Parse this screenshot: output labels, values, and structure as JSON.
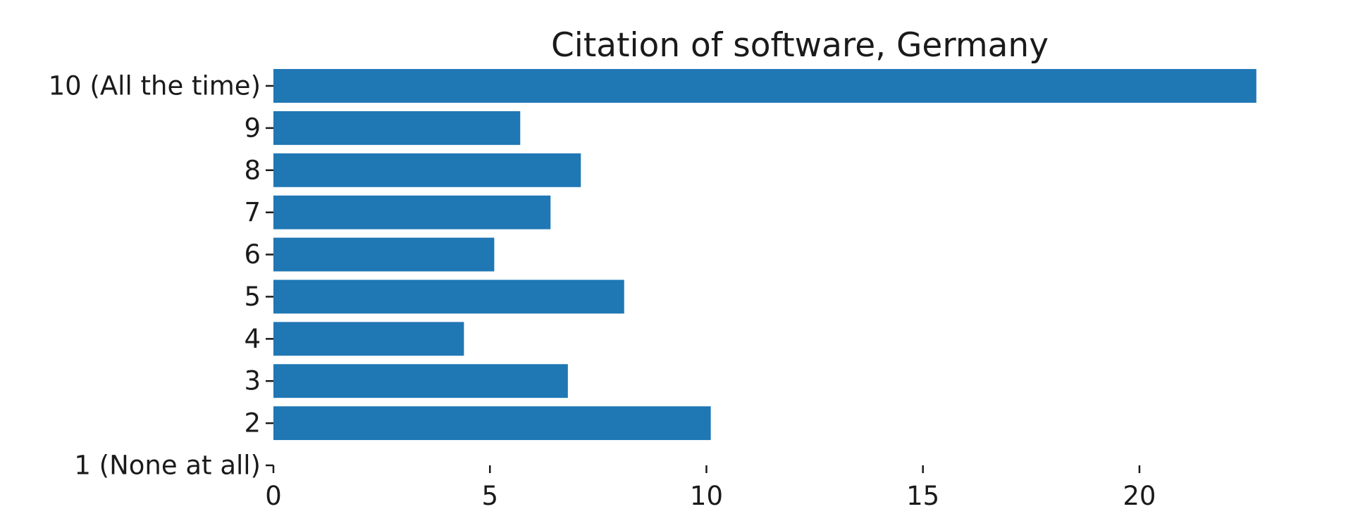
{
  "chart_data": {
    "type": "bar",
    "orientation": "horizontal",
    "title": "Citation of software, Germany",
    "xlabel": "",
    "ylabel": "",
    "categories": [
      "1 (None at all)",
      "2",
      "3",
      "4",
      "5",
      "6",
      "7",
      "8",
      "9",
      "10 (All the time)"
    ],
    "values": [
      0,
      10.1,
      6.8,
      4.4,
      8.1,
      5.1,
      6.4,
      7.1,
      5.7,
      22.7
    ],
    "xlim": [
      0,
      23.5
    ],
    "xticks": [
      0,
      5,
      10,
      15,
      20
    ],
    "grid": false,
    "legend": "none",
    "bar_color": "#1f77b4"
  }
}
